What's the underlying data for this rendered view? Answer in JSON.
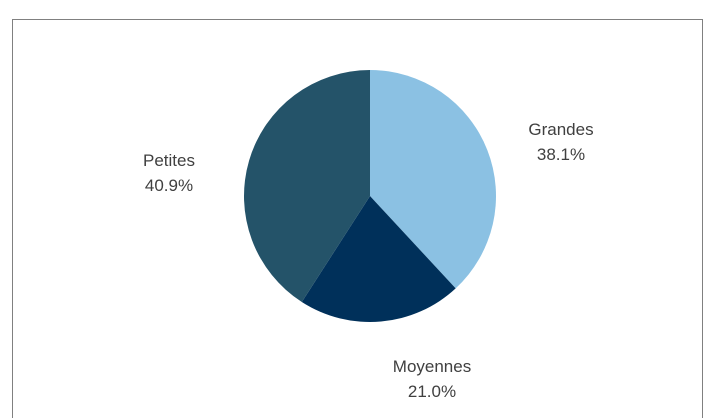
{
  "chart_data": {
    "type": "pie",
    "title": "",
    "categories": [
      "Grandes",
      "Moyennes",
      "Petites"
    ],
    "values": [
      38.1,
      21.0,
      40.9
    ],
    "value_labels": [
      "38.1%",
      "21.0%",
      "40.9%"
    ],
    "colors": [
      "#8bc1e3",
      "#00305a",
      "#245369"
    ],
    "start_angle_deg": 0,
    "direction": "clockwise",
    "legend": "none",
    "labels_position": "outside"
  }
}
